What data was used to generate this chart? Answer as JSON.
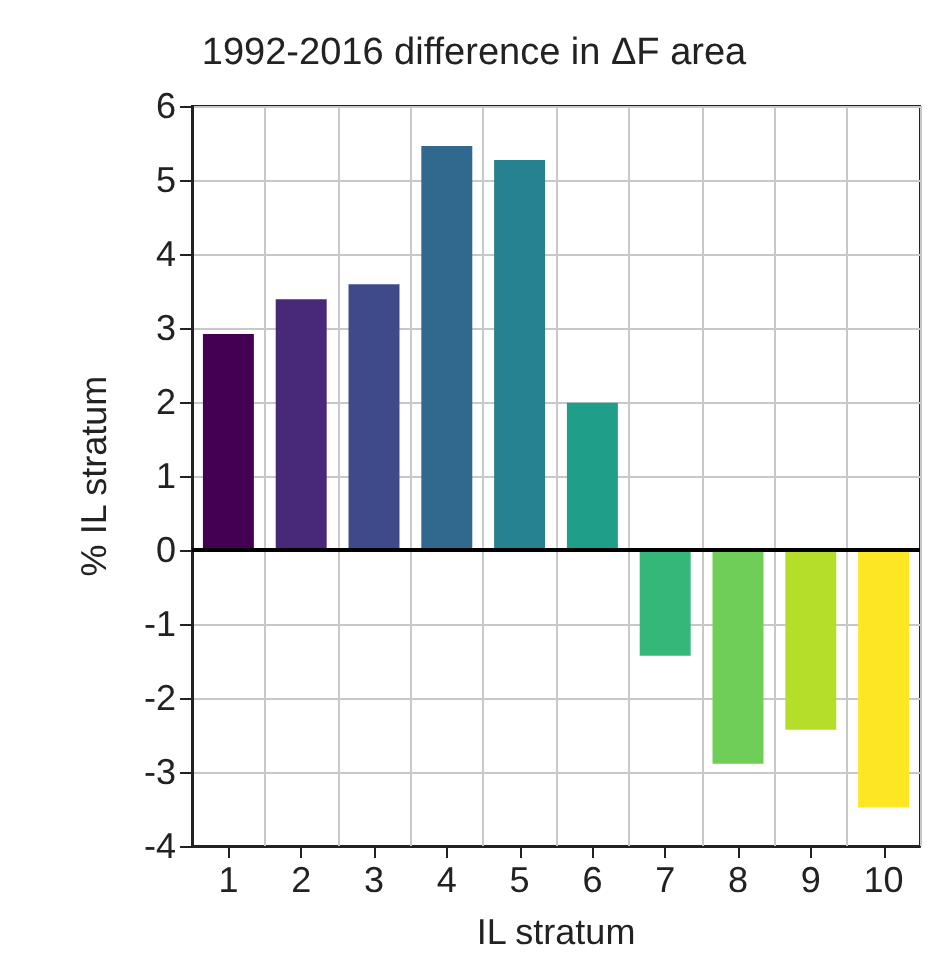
{
  "chart_data": {
    "type": "bar",
    "title": "1992-2016 difference in ΔF area",
    "xlabel": "IL stratum",
    "ylabel": "% IL stratum",
    "categories": [
      "1",
      "2",
      "3",
      "4",
      "5",
      "6",
      "7",
      "8",
      "9",
      "10"
    ],
    "values": [
      2.92,
      3.39,
      3.59,
      5.46,
      5.27,
      1.99,
      -1.43,
      -2.89,
      -2.43,
      -3.48
    ],
    "colors": [
      "#440154",
      "#482878",
      "#3e4a89",
      "#31688e",
      "#26828e",
      "#1f9e89",
      "#35b779",
      "#6ece58",
      "#b5de2b",
      "#fde725"
    ],
    "ylim": [
      -4,
      6
    ],
    "yticks": [
      -4,
      -3,
      -2,
      -1,
      0,
      1,
      2,
      3,
      4,
      5,
      6
    ],
    "grid": true,
    "ref_lines": [
      {
        "axis": "y",
        "value": 0,
        "color": "#000000"
      }
    ]
  }
}
